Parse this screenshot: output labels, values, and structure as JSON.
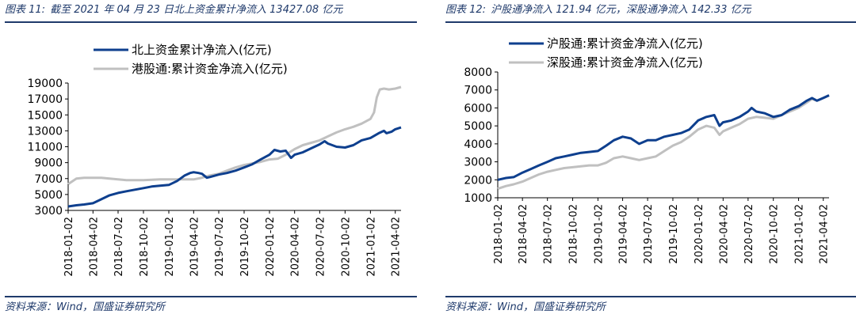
{
  "left": {
    "title_prefix": "图表 11:",
    "title_text": "截至 2021 年 04 月 23 日北上资金累计净流入 13427.08 亿元",
    "source": "资料来源：Wind，国盛证券研究所"
  },
  "right": {
    "title_prefix": "图表 12:",
    "title_text": "沪股通净流入 121.94 亿元，深股通净流入 142.33 亿元",
    "source": "资料来源：Wind，国盛证券研究所"
  },
  "chart_data": [
    {
      "type": "line",
      "title": "",
      "xlabel": "",
      "ylabel": "",
      "ylim": [
        3000,
        19000
      ],
      "yticks": [
        3000,
        5000,
        7000,
        9000,
        11000,
        13000,
        15000,
        17000,
        19000
      ],
      "xlim": [
        "2018-01-02",
        "2021-04-23"
      ],
      "xticks": [
        "2018-01-02",
        "2018-04-02",
        "2018-07-02",
        "2018-10-02",
        "2019-01-02",
        "2019-04-02",
        "2019-07-02",
        "2019-10-02",
        "2020-01-02",
        "2020-04-02",
        "2020-07-02",
        "2020-10-02",
        "2021-01-02",
        "2021-04-02"
      ],
      "grid": false,
      "legend": "top",
      "series": [
        {
          "name": "北上资金累计净流入(亿元)",
          "color": "#0e3f8e",
          "width": 3,
          "points": [
            [
              "2018-01-02",
              3500
            ],
            [
              "2018-02-01",
              3650
            ],
            [
              "2018-03-01",
              3750
            ],
            [
              "2018-04-02",
              3900
            ],
            [
              "2018-05-02",
              4400
            ],
            [
              "2018-06-01",
              4900
            ],
            [
              "2018-07-02",
              5200
            ],
            [
              "2018-08-01",
              5400
            ],
            [
              "2018-09-01",
              5600
            ],
            [
              "2018-10-02",
              5800
            ],
            [
              "2018-11-01",
              6000
            ],
            [
              "2018-12-01",
              6100
            ],
            [
              "2019-01-02",
              6200
            ],
            [
              "2019-02-01",
              6700
            ],
            [
              "2019-03-01",
              7400
            ],
            [
              "2019-03-20",
              7700
            ],
            [
              "2019-04-02",
              7800
            ],
            [
              "2019-04-20",
              7700
            ],
            [
              "2019-05-02",
              7600
            ],
            [
              "2019-05-20",
              7100
            ],
            [
              "2019-06-01",
              7200
            ],
            [
              "2019-07-02",
              7500
            ],
            [
              "2019-08-01",
              7700
            ],
            [
              "2019-09-01",
              8000
            ],
            [
              "2019-10-02",
              8400
            ],
            [
              "2019-11-01",
              8800
            ],
            [
              "2019-12-01",
              9400
            ],
            [
              "2020-01-02",
              10000
            ],
            [
              "2020-01-20",
              10600
            ],
            [
              "2020-02-10",
              10400
            ],
            [
              "2020-03-01",
              10500
            ],
            [
              "2020-03-20",
              9600
            ],
            [
              "2020-04-02",
              10000
            ],
            [
              "2020-05-02",
              10300
            ],
            [
              "2020-06-01",
              10800
            ],
            [
              "2020-07-02",
              11300
            ],
            [
              "2020-07-20",
              11700
            ],
            [
              "2020-08-01",
              11400
            ],
            [
              "2020-09-01",
              11000
            ],
            [
              "2020-10-02",
              10900
            ],
            [
              "2020-11-01",
              11200
            ],
            [
              "2020-12-01",
              11800
            ],
            [
              "2021-01-02",
              12100
            ],
            [
              "2021-02-01",
              12700
            ],
            [
              "2021-02-20",
              13000
            ],
            [
              "2021-03-01",
              12700
            ],
            [
              "2021-03-20",
              12900
            ],
            [
              "2021-04-02",
              13200
            ],
            [
              "2021-04-23",
              13427
            ]
          ]
        },
        {
          "name": "港股通:累计资金净流入(亿元)",
          "color": "#c0c0c0",
          "width": 3,
          "points": [
            [
              "2018-01-02",
              6300
            ],
            [
              "2018-02-01",
              7000
            ],
            [
              "2018-03-01",
              7100
            ],
            [
              "2018-04-02",
              7100
            ],
            [
              "2018-05-02",
              7100
            ],
            [
              "2018-06-01",
              7000
            ],
            [
              "2018-07-02",
              6900
            ],
            [
              "2018-08-01",
              6800
            ],
            [
              "2018-09-01",
              6800
            ],
            [
              "2018-10-02",
              6800
            ],
            [
              "2018-11-01",
              6850
            ],
            [
              "2018-12-01",
              6900
            ],
            [
              "2019-01-02",
              6900
            ],
            [
              "2019-02-01",
              6900
            ],
            [
              "2019-03-01",
              6900
            ],
            [
              "2019-04-02",
              6900
            ],
            [
              "2019-05-02",
              7100
            ],
            [
              "2019-06-01",
              7400
            ],
            [
              "2019-07-02",
              7600
            ],
            [
              "2019-08-01",
              8000
            ],
            [
              "2019-09-01",
              8400
            ],
            [
              "2019-10-02",
              8700
            ],
            [
              "2019-11-01",
              8900
            ],
            [
              "2019-12-01",
              9100
            ],
            [
              "2020-01-02",
              9400
            ],
            [
              "2020-02-01",
              9500
            ],
            [
              "2020-03-01",
              10000
            ],
            [
              "2020-04-02",
              10700
            ],
            [
              "2020-05-02",
              11200
            ],
            [
              "2020-06-01",
              11500
            ],
            [
              "2020-07-02",
              11800
            ],
            [
              "2020-08-01",
              12300
            ],
            [
              "2020-09-01",
              12800
            ],
            [
              "2020-10-02",
              13200
            ],
            [
              "2020-11-01",
              13500
            ],
            [
              "2020-12-01",
              13900
            ],
            [
              "2021-01-02",
              14500
            ],
            [
              "2021-01-15",
              15300
            ],
            [
              "2021-01-25",
              17200
            ],
            [
              "2021-02-05",
              18200
            ],
            [
              "2021-02-20",
              18300
            ],
            [
              "2021-03-10",
              18200
            ],
            [
              "2021-04-02",
              18300
            ],
            [
              "2021-04-23",
              18500
            ]
          ]
        }
      ]
    },
    {
      "type": "line",
      "title": "",
      "xlabel": "",
      "ylabel": "",
      "ylim": [
        1000,
        8000
      ],
      "yticks": [
        1000,
        2000,
        3000,
        4000,
        5000,
        6000,
        7000,
        8000
      ],
      "xlim": [
        "2018-01-02",
        "2021-04-23"
      ],
      "xticks": [
        "2018-01-02",
        "2018-04-02",
        "2018-07-02",
        "2018-10-02",
        "2019-01-02",
        "2019-04-02",
        "2019-07-02",
        "2019-10-02",
        "2020-01-02",
        "2020-04-02",
        "2020-07-02",
        "2020-10-02",
        "2021-01-02",
        "2021-04-02"
      ],
      "grid": false,
      "legend": "top",
      "series": [
        {
          "name": "沪股通:累计资金净流入(亿元)",
          "color": "#0e3f8e",
          "width": 3,
          "points": [
            [
              "2018-01-02",
              2000
            ],
            [
              "2018-02-01",
              2100
            ],
            [
              "2018-03-01",
              2150
            ],
            [
              "2018-04-02",
              2400
            ],
            [
              "2018-05-02",
              2600
            ],
            [
              "2018-06-01",
              2800
            ],
            [
              "2018-07-02",
              3000
            ],
            [
              "2018-08-01",
              3200
            ],
            [
              "2018-09-01",
              3300
            ],
            [
              "2018-10-02",
              3400
            ],
            [
              "2018-11-01",
              3500
            ],
            [
              "2018-12-01",
              3550
            ],
            [
              "2019-01-02",
              3600
            ],
            [
              "2019-02-01",
              3900
            ],
            [
              "2019-03-01",
              4200
            ],
            [
              "2019-04-02",
              4400
            ],
            [
              "2019-05-02",
              4300
            ],
            [
              "2019-06-01",
              4000
            ],
            [
              "2019-07-02",
              4200
            ],
            [
              "2019-08-01",
              4200
            ],
            [
              "2019-09-01",
              4400
            ],
            [
              "2019-10-02",
              4500
            ],
            [
              "2019-11-01",
              4600
            ],
            [
              "2019-12-01",
              4800
            ],
            [
              "2020-01-02",
              5300
            ],
            [
              "2020-02-01",
              5500
            ],
            [
              "2020-03-01",
              5600
            ],
            [
              "2020-03-20",
              5000
            ],
            [
              "2020-04-02",
              5200
            ],
            [
              "2020-05-02",
              5300
            ],
            [
              "2020-06-01",
              5500
            ],
            [
              "2020-07-02",
              5800
            ],
            [
              "2020-07-15",
              6000
            ],
            [
              "2020-08-01",
              5800
            ],
            [
              "2020-09-01",
              5700
            ],
            [
              "2020-10-02",
              5500
            ],
            [
              "2020-11-01",
              5600
            ],
            [
              "2020-12-01",
              5900
            ],
            [
              "2021-01-02",
              6100
            ],
            [
              "2021-02-01",
              6400
            ],
            [
              "2021-02-20",
              6550
            ],
            [
              "2021-03-10",
              6400
            ],
            [
              "2021-04-02",
              6550
            ],
            [
              "2021-04-23",
              6700
            ]
          ]
        },
        {
          "name": "深股通:累计资金净流入(亿元)",
          "color": "#c0c0c0",
          "width": 3,
          "points": [
            [
              "2018-01-02",
              1500
            ],
            [
              "2018-02-01",
              1650
            ],
            [
              "2018-03-01",
              1750
            ],
            [
              "2018-04-02",
              1900
            ],
            [
              "2018-05-02",
              2100
            ],
            [
              "2018-06-01",
              2300
            ],
            [
              "2018-07-02",
              2450
            ],
            [
              "2018-08-01",
              2550
            ],
            [
              "2018-09-01",
              2650
            ],
            [
              "2018-10-02",
              2700
            ],
            [
              "2018-11-01",
              2750
            ],
            [
              "2018-12-01",
              2800
            ],
            [
              "2019-01-02",
              2800
            ],
            [
              "2019-02-01",
              2950
            ],
            [
              "2019-03-01",
              3200
            ],
            [
              "2019-04-02",
              3300
            ],
            [
              "2019-05-02",
              3200
            ],
            [
              "2019-06-01",
              3100
            ],
            [
              "2019-07-02",
              3200
            ],
            [
              "2019-08-01",
              3300
            ],
            [
              "2019-09-01",
              3600
            ],
            [
              "2019-10-02",
              3900
            ],
            [
              "2019-11-01",
              4100
            ],
            [
              "2019-12-01",
              4400
            ],
            [
              "2020-01-02",
              4800
            ],
            [
              "2020-02-01",
              5000
            ],
            [
              "2020-03-01",
              4900
            ],
            [
              "2020-03-20",
              4500
            ],
            [
              "2020-04-02",
              4700
            ],
            [
              "2020-05-02",
              4900
            ],
            [
              "2020-06-01",
              5100
            ],
            [
              "2020-07-02",
              5400
            ],
            [
              "2020-08-01",
              5500
            ],
            [
              "2020-09-01",
              5450
            ],
            [
              "2020-10-02",
              5400
            ],
            [
              "2020-11-01",
              5600
            ],
            [
              "2020-12-01",
              5800
            ],
            [
              "2021-01-02",
              6000
            ],
            [
              "2021-02-01",
              6300
            ],
            [
              "2021-02-20",
              6500
            ],
            [
              "2021-03-10",
              6400
            ],
            [
              "2021-04-02",
              6550
            ],
            [
              "2021-04-23",
              6700
            ]
          ]
        }
      ]
    }
  ]
}
